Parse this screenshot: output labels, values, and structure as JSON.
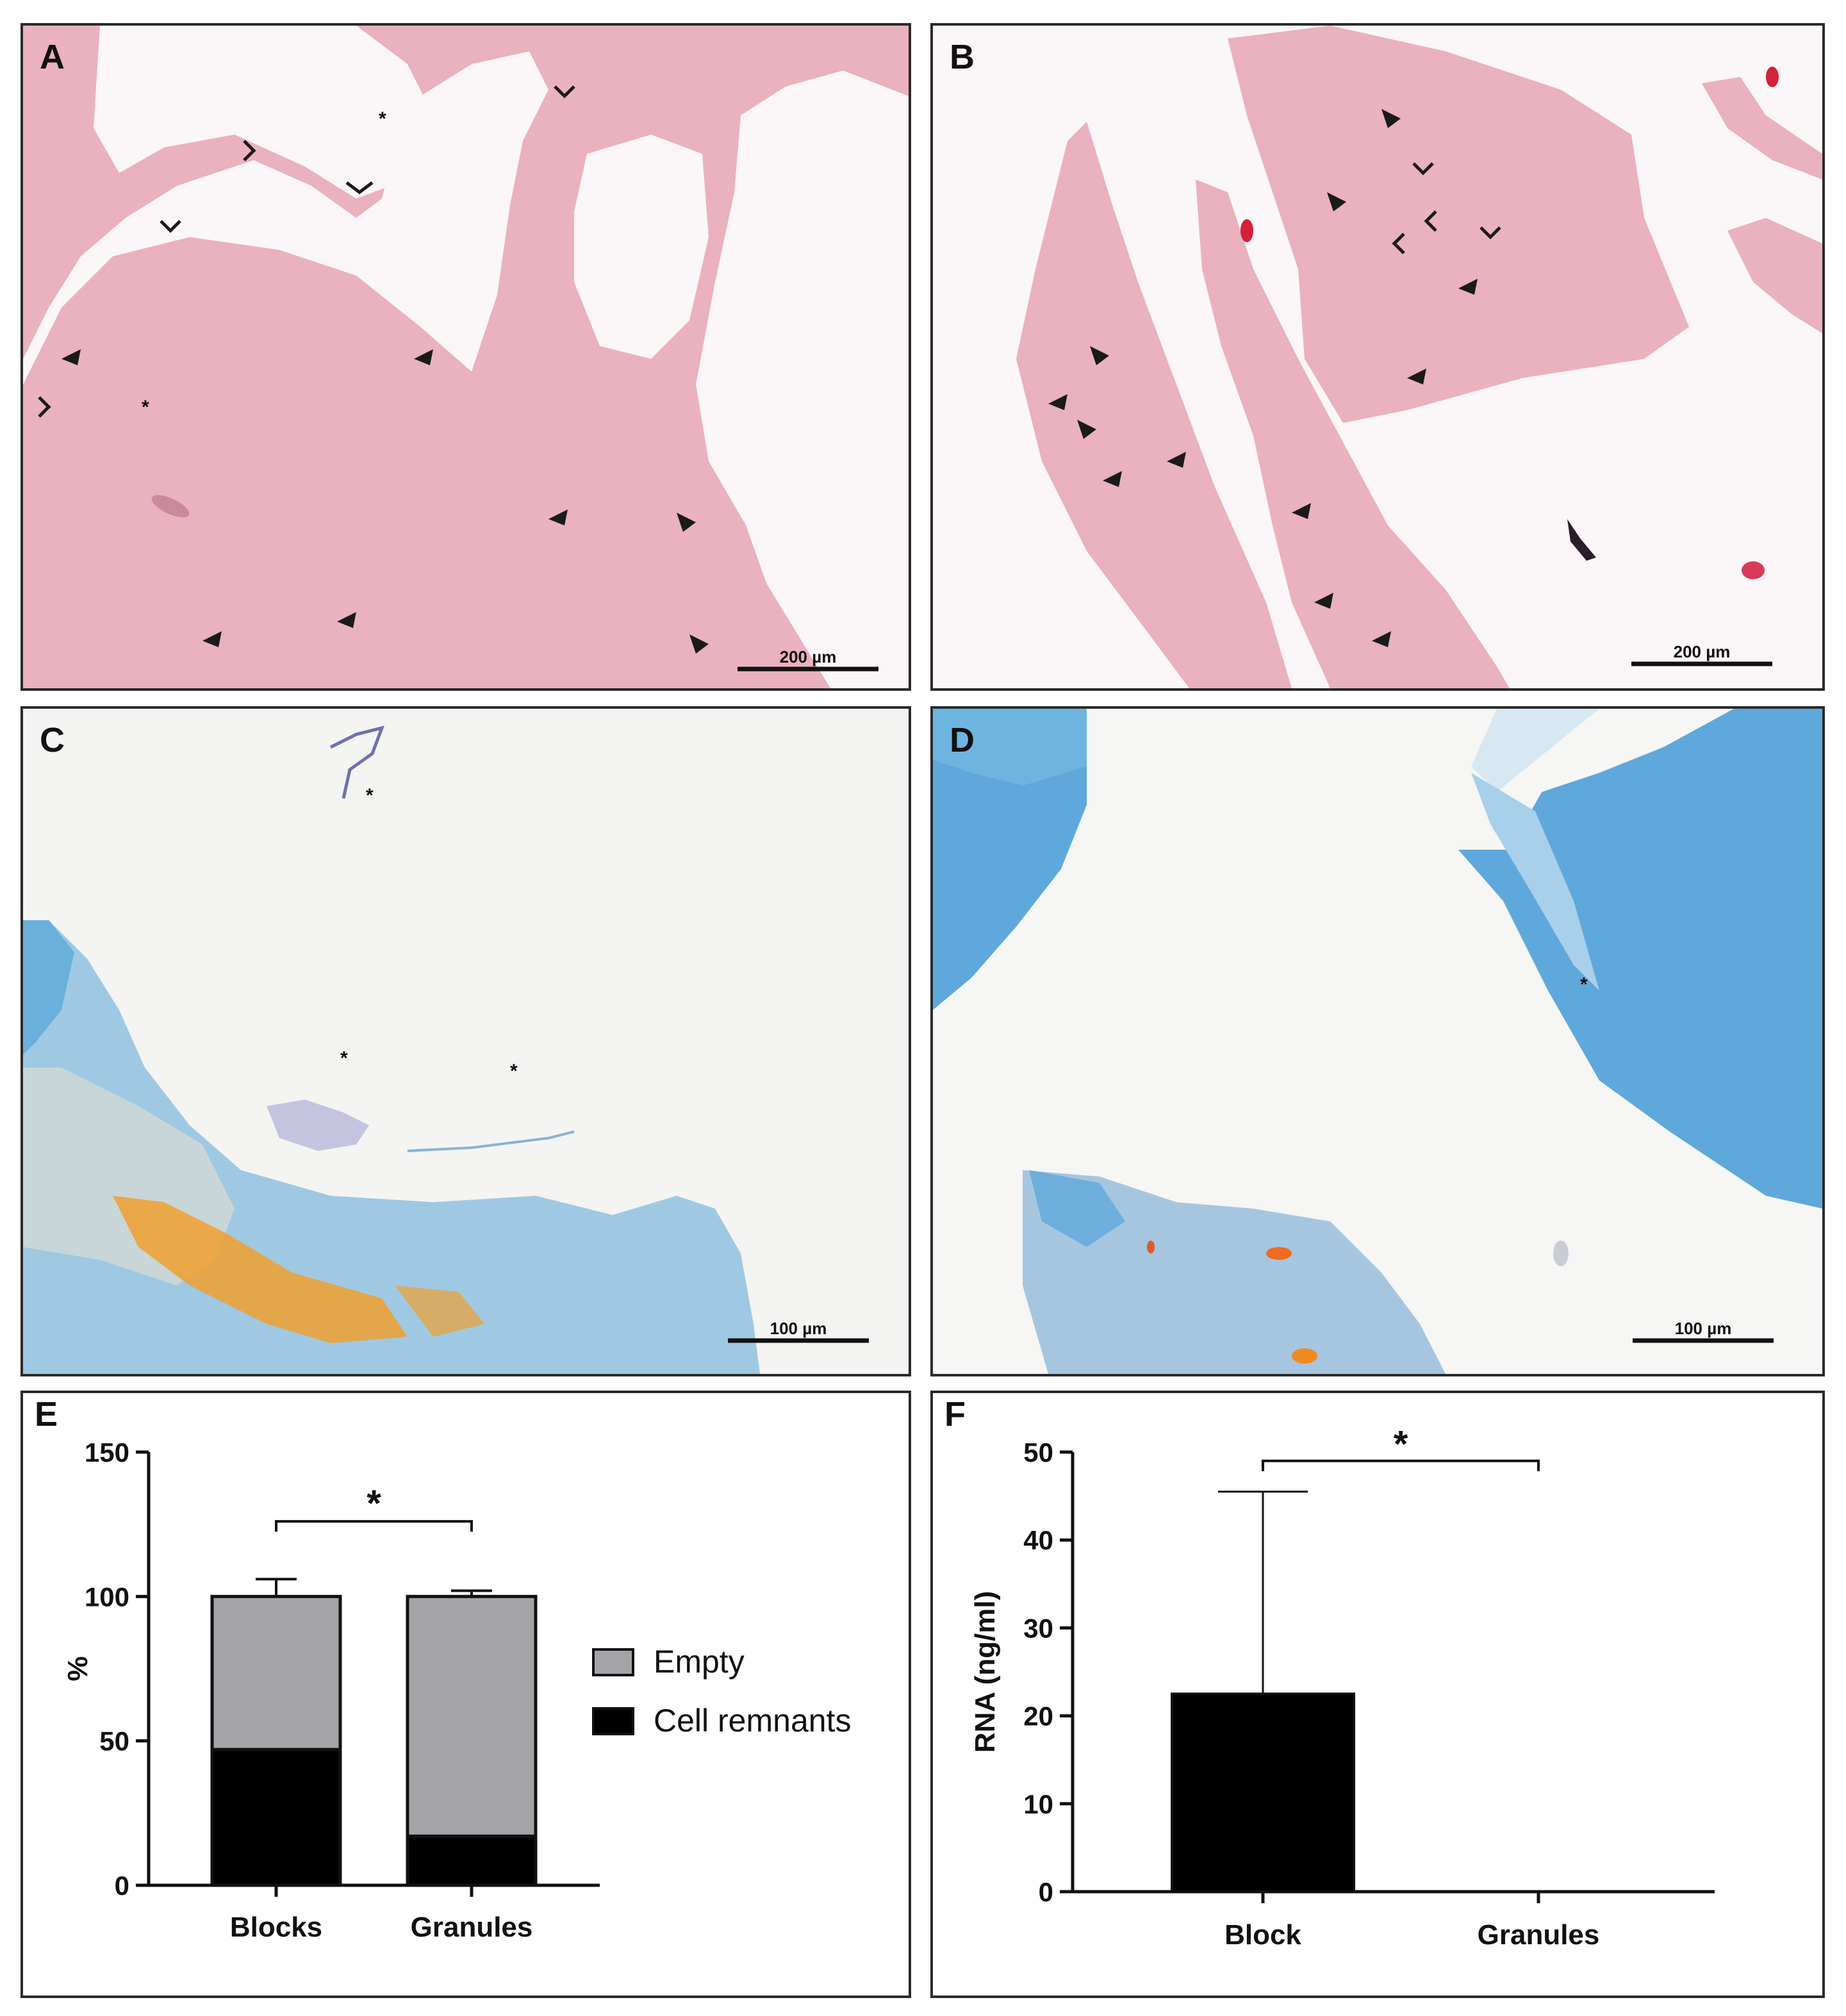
{
  "panels": {
    "A": {
      "label": "A",
      "scale_bar": "200 µm",
      "marker": "*"
    },
    "B": {
      "label": "B",
      "scale_bar": "200 µm"
    },
    "C": {
      "label": "C",
      "scale_bar": "100 µm",
      "marker": "*"
    },
    "D": {
      "label": "D",
      "scale_bar": "100 µm",
      "marker": "*"
    },
    "E": {
      "label": "E"
    },
    "F": {
      "label": "F"
    }
  },
  "colors": {
    "he_stain": "#eab1bf",
    "he_background": "#fbf6f7",
    "alcian_blue": "#5fa8dc",
    "orange_stain": "#f0a030",
    "empty_bar": "#a4a4a8",
    "cell_bar": "#000000"
  },
  "chart_data": [
    {
      "type": "bar",
      "stacked": true,
      "categories": [
        "Blocks",
        "Granules"
      ],
      "series": [
        {
          "name": "Cell remnants",
          "values": [
            47,
            17
          ],
          "error": [
            6,
            2
          ]
        },
        {
          "name": "Empty",
          "values": [
            53,
            83
          ],
          "error": [
            6,
            2
          ]
        }
      ],
      "title": "",
      "ylabel": "%",
      "ylim": [
        0,
        150
      ],
      "yticks": [
        0,
        50,
        100,
        150
      ],
      "legend": {
        "position": "right",
        "entries": [
          "Empty",
          "Cell remnants"
        ]
      },
      "significance": "*"
    },
    {
      "type": "bar",
      "categories": [
        "Block",
        "Granules"
      ],
      "values": [
        22.5,
        0
      ],
      "error": [
        23,
        0
      ],
      "title": "",
      "ylabel": "RNA (ng/ml)",
      "ylim": [
        0,
        50
      ],
      "yticks": [
        0,
        10,
        20,
        30,
        40,
        50
      ],
      "significance": "*"
    }
  ]
}
